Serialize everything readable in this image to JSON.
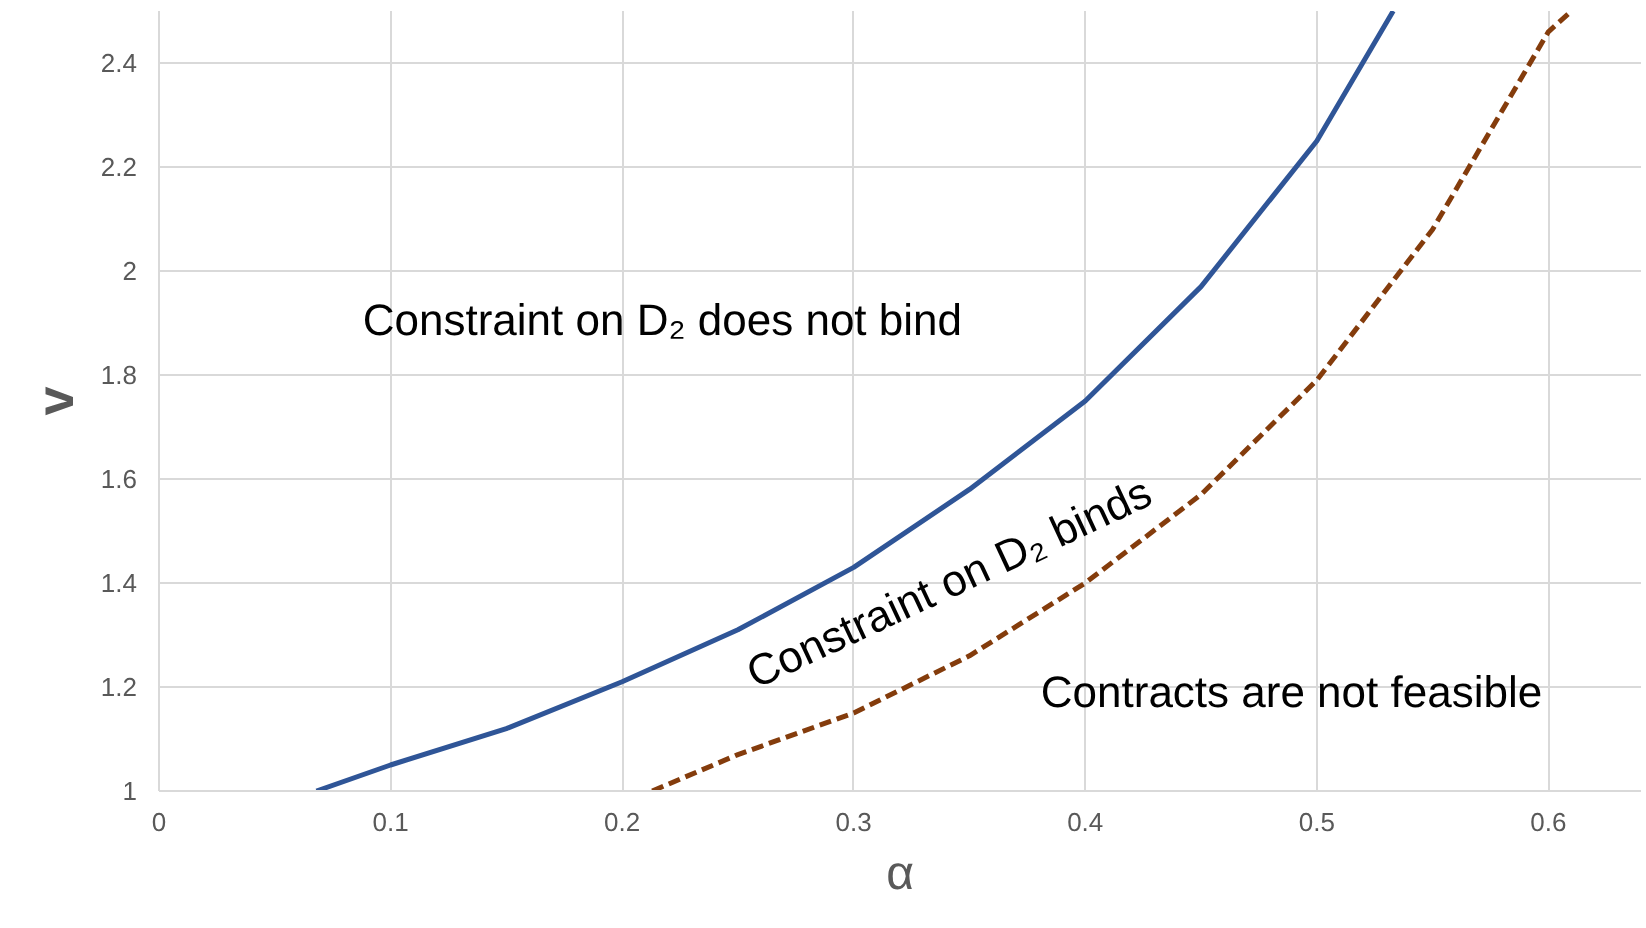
{
  "chart_data": {
    "type": "line",
    "xlabel": "α",
    "ylabel": "v",
    "xlim": [
      0,
      0.64
    ],
    "ylim": [
      1,
      2.5
    ],
    "xticks": [
      0,
      0.1,
      0.2,
      0.3,
      0.4,
      0.5,
      0.6
    ],
    "yticks": [
      1,
      1.2,
      1.4,
      1.6,
      1.8,
      2,
      2.2,
      2.4
    ],
    "grid": true,
    "marker": "none",
    "series": [
      {
        "color": "#2f5597",
        "line_style": "solid",
        "x": [
          0.068,
          0.1,
          0.15,
          0.2,
          0.25,
          0.3,
          0.35,
          0.4,
          0.45,
          0.5,
          0.533
        ],
        "values": [
          1,
          1.05,
          1.12,
          1.21,
          1.31,
          1.43,
          1.58,
          1.75,
          1.97,
          2.25,
          2.5
        ]
      },
      {
        "color": "#843c0c",
        "line_style": "dashed",
        "x": [
          0.213,
          0.25,
          0.3,
          0.35,
          0.4,
          0.45,
          0.5,
          0.55,
          0.6,
          0.61
        ],
        "values": [
          1,
          1.07,
          1.15,
          1.26,
          1.4,
          1.57,
          1.79,
          2.08,
          2.46,
          2.5
        ]
      }
    ],
    "annotations": [
      "Constraint on D₂ does not bind",
      "Constraint on D₂ binds",
      "Contracts are not feasible"
    ]
  }
}
